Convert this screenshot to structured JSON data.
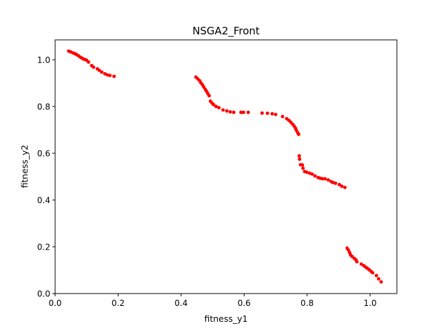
{
  "chart_data": {
    "type": "scatter",
    "title": "NSGA2_Front",
    "xlabel": "fitness_y1",
    "ylabel": "fitness_y2",
    "xlim": [
      -0.0,
      1.085
    ],
    "ylim": [
      0.0,
      1.085
    ],
    "xticks": [
      0.0,
      0.2,
      0.4,
      0.6,
      0.8,
      1.0
    ],
    "xtick_labels": [
      "0.0",
      "0.2",
      "0.4",
      "0.6",
      "0.8",
      "1.0"
    ],
    "yticks": [
      0.0,
      0.2,
      0.4,
      0.6,
      0.8,
      1.0
    ],
    "ytick_labels": [
      "0.0",
      "0.2",
      "0.4",
      "0.6",
      "0.8",
      "1.0"
    ],
    "grid": false,
    "marker_color": "#ff0000",
    "series": [
      {
        "points": [
          [
            0.043,
            1.037
          ],
          [
            0.05,
            1.033
          ],
          [
            0.057,
            1.029
          ],
          [
            0.063,
            1.026
          ],
          [
            0.068,
            1.022
          ],
          [
            0.074,
            1.017
          ],
          [
            0.08,
            1.011
          ],
          [
            0.085,
            1.007
          ],
          [
            0.09,
            1.003
          ],
          [
            0.095,
            1.001
          ],
          [
            0.1,
            0.998
          ],
          [
            0.106,
            0.99
          ],
          [
            0.116,
            0.975
          ],
          [
            0.122,
            0.968
          ],
          [
            0.134,
            0.961
          ],
          [
            0.14,
            0.955
          ],
          [
            0.148,
            0.947
          ],
          [
            0.158,
            0.94
          ],
          [
            0.166,
            0.935
          ],
          [
            0.174,
            0.933
          ],
          [
            0.187,
            0.929
          ],
          [
            0.447,
            0.926
          ],
          [
            0.453,
            0.918
          ],
          [
            0.459,
            0.91
          ],
          [
            0.463,
            0.901
          ],
          [
            0.468,
            0.892
          ],
          [
            0.472,
            0.883
          ],
          [
            0.477,
            0.873
          ],
          [
            0.481,
            0.864
          ],
          [
            0.485,
            0.855
          ],
          [
            0.489,
            0.846
          ],
          [
            0.493,
            0.823
          ],
          [
            0.498,
            0.815
          ],
          [
            0.503,
            0.808
          ],
          [
            0.511,
            0.8
          ],
          [
            0.52,
            0.795
          ],
          [
            0.533,
            0.785
          ],
          [
            0.545,
            0.781
          ],
          [
            0.556,
            0.777
          ],
          [
            0.567,
            0.775
          ],
          [
            0.59,
            0.775
          ],
          [
            0.598,
            0.775
          ],
          [
            0.613,
            0.775
          ],
          [
            0.657,
            0.772
          ],
          [
            0.674,
            0.771
          ],
          [
            0.689,
            0.769
          ],
          [
            0.7,
            0.766
          ],
          [
            0.722,
            0.757
          ],
          [
            0.735,
            0.748
          ],
          [
            0.742,
            0.741
          ],
          [
            0.748,
            0.733
          ],
          [
            0.754,
            0.724
          ],
          [
            0.759,
            0.716
          ],
          [
            0.763,
            0.707
          ],
          [
            0.766,
            0.698
          ],
          [
            0.77,
            0.688
          ],
          [
            0.773,
            0.681
          ],
          [
            0.775,
            0.589
          ],
          [
            0.776,
            0.575
          ],
          [
            0.779,
            0.551
          ],
          [
            0.785,
            0.55
          ],
          [
            0.787,
            0.536
          ],
          [
            0.792,
            0.522
          ],
          [
            0.799,
            0.519
          ],
          [
            0.808,
            0.515
          ],
          [
            0.816,
            0.511
          ],
          [
            0.825,
            0.503
          ],
          [
            0.835,
            0.496
          ],
          [
            0.842,
            0.493
          ],
          [
            0.849,
            0.491
          ],
          [
            0.857,
            0.491
          ],
          [
            0.867,
            0.486
          ],
          [
            0.876,
            0.479
          ],
          [
            0.882,
            0.475
          ],
          [
            0.89,
            0.472
          ],
          [
            0.902,
            0.466
          ],
          [
            0.91,
            0.459
          ],
          [
            0.92,
            0.454
          ],
          [
            0.927,
            0.194
          ],
          [
            0.931,
            0.186
          ],
          [
            0.935,
            0.175
          ],
          [
            0.938,
            0.165
          ],
          [
            0.943,
            0.158
          ],
          [
            0.95,
            0.15
          ],
          [
            0.955,
            0.144
          ],
          [
            0.958,
            0.136
          ],
          [
            0.972,
            0.126
          ],
          [
            0.98,
            0.119
          ],
          [
            0.986,
            0.113
          ],
          [
            0.991,
            0.108
          ],
          [
            0.997,
            0.102
          ],
          [
            1.003,
            0.095
          ],
          [
            1.008,
            0.089
          ],
          [
            1.02,
            0.077
          ],
          [
            1.027,
            0.063
          ],
          [
            1.035,
            0.05
          ]
        ]
      }
    ]
  }
}
